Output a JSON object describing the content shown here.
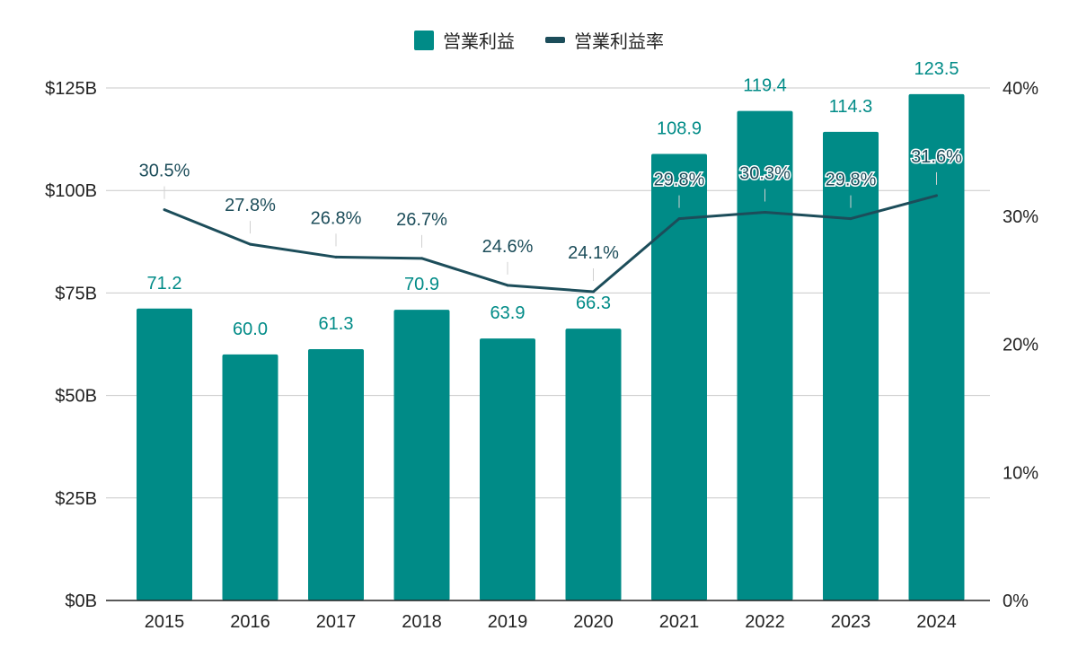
{
  "colors": {
    "bar": "#008b87",
    "line": "#1c4d5a",
    "grid": "#c9c9c9",
    "axis": "#222222"
  },
  "legend": {
    "bar_label": "営業利益",
    "line_label": "営業利益率"
  },
  "chart_data": {
    "type": "bar",
    "categories": [
      "2015",
      "2016",
      "2017",
      "2018",
      "2019",
      "2020",
      "2021",
      "2022",
      "2023",
      "2024"
    ],
    "series": [
      {
        "name": "営業利益",
        "type": "bar",
        "axis": "left",
        "values": [
          71.2,
          60.0,
          61.3,
          70.9,
          63.9,
          66.3,
          108.9,
          119.4,
          114.3,
          123.5
        ],
        "labels": [
          "71.2",
          "60.0",
          "61.3",
          "70.9",
          "63.9",
          "66.3",
          "108.9",
          "119.4",
          "114.3",
          "123.5"
        ]
      },
      {
        "name": "営業利益率",
        "type": "line",
        "axis": "right",
        "values": [
          30.5,
          27.8,
          26.8,
          26.7,
          24.6,
          24.1,
          29.8,
          30.3,
          29.8,
          31.6
        ],
        "labels": [
          "30.5%",
          "27.8%",
          "26.8%",
          "26.7%",
          "24.6%",
          "24.1%",
          "29.8%",
          "30.3%",
          "29.8%",
          "31.6%"
        ]
      }
    ],
    "y_left": {
      "ylim": [
        0,
        125
      ],
      "ticks": [
        0,
        25,
        50,
        75,
        100,
        125
      ],
      "tick_labels": [
        "$0B",
        "$25B",
        "$50B",
        "$75B",
        "$100B",
        "$125B"
      ]
    },
    "y_right": {
      "ylim": [
        0,
        40
      ],
      "ticks": [
        0,
        10,
        20,
        30,
        40
      ],
      "tick_labels": [
        "0%",
        "10%",
        "20%",
        "30%",
        "40%"
      ]
    },
    "grid": true,
    "legend_position": "top-center"
  }
}
